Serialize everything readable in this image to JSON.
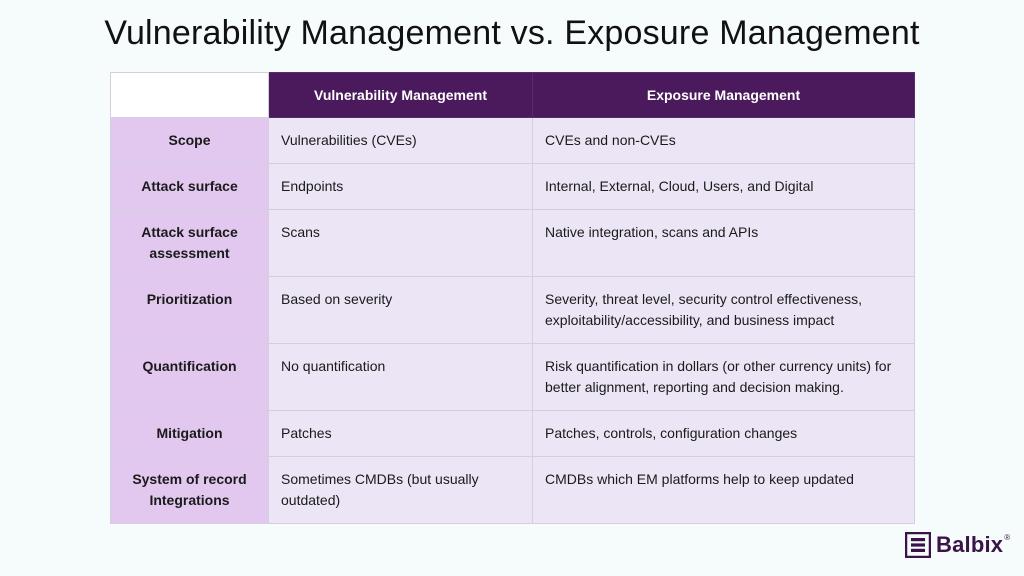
{
  "title": "Vulnerability Management vs. Exposure Management",
  "table": {
    "columns": [
      "",
      "Vulnerability Management",
      "Exposure Management"
    ],
    "rows": [
      {
        "label": "Scope",
        "vm": "Vulnerabilities (CVEs)",
        "em": "CVEs and non-CVEs"
      },
      {
        "label": "Attack surface",
        "vm": "Endpoints",
        "em": "Internal, External, Cloud, Users, and Digital"
      },
      {
        "label": "Attack surface assessment",
        "vm": "Scans",
        "em": "Native integration, scans and APIs"
      },
      {
        "label": "Prioritization",
        "vm": "Based on severity",
        "em": "Severity, threat level, security control effectiveness, exploitability/accessibility, and business impact"
      },
      {
        "label": "Quantification",
        "vm": "No quantification",
        "em": "Risk quantification in dollars (or other currency units) for better alignment, reporting and decision making."
      },
      {
        "label": "Mitigation",
        "vm": "Patches",
        "em": "Patches, controls, configuration changes"
      },
      {
        "label": "System of record Integrations",
        "vm": "Sometimes CMDBs (but usually outdated)",
        "em": "CMDBs which EM platforms help to keep updated"
      }
    ]
  },
  "logo": {
    "text": "Balbix",
    "reg": "®",
    "color": "#3a1448"
  },
  "colors": {
    "header_bg": "#4a1a5c",
    "label_bg": "#e2c7ef",
    "cell_bg": "#ece5f5"
  }
}
